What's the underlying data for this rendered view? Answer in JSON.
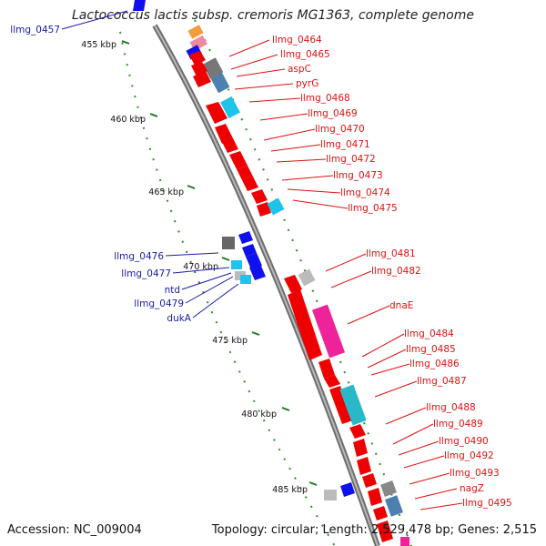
{
  "title": "Lactococcus lactis subsp. cremoris MG1363, complete genome",
  "accession": "Accession: NC_009004",
  "summary": "Topology: circular; Length: 2,529,478 bp; Genes: 2,515",
  "colors": {
    "forward_label": "#dd1111",
    "reverse_label": "#1a1aa8",
    "backbone": "#8c8c8c",
    "tick_dots": "#2c8f2c",
    "cds_red": "#ee0000",
    "cds_blue": "#1010ee",
    "cyan": "#19c4e6",
    "gray": "#888888",
    "magenta": "#ee2299"
  },
  "ticks": [
    "455 kbp",
    "460 kbp",
    "465 kbp",
    "470 kbp",
    "475 kbp",
    "480 kbp",
    "485 kbp"
  ],
  "reverse_labels": [
    "llmg_0457",
    "llmg_0476",
    "llmg_0477",
    "ntd",
    "llmg_0479",
    "dukA"
  ],
  "forward_labels": [
    "llmg_0464",
    "llmg_0465",
    "aspC",
    "pyrG",
    "llmg_0468",
    "llmg_0469",
    "llmg_0470",
    "llmg_0471",
    "llmg_0472",
    "llmg_0473",
    "llmg_0474",
    "llmg_0475",
    "llmg_0481",
    "llmg_0482",
    "dnaE",
    "llmg_0484",
    "llmg_0485",
    "llmg_0486",
    "llmg_0487",
    "llmg_0488",
    "llmg_0489",
    "llmg_0490",
    "llmg_0492",
    "llmg_0493",
    "nagZ",
    "llmg_0495"
  ]
}
